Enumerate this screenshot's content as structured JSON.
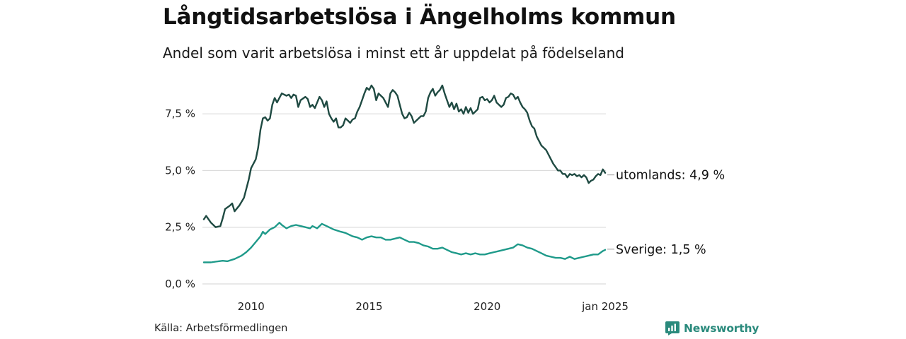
{
  "header": {
    "title": "Långtidsarbetslösa i Ängelholms kommun",
    "subtitle": "Andel som varit arbetslösa i minst ett år uppdelat på födelseland"
  },
  "footer": {
    "source": "Källa: Arbetsförmedlingen",
    "brand": "Newsworthy",
    "brand_color": "#2a8a7c"
  },
  "chart_data": {
    "type": "line",
    "x_unit": "year",
    "xlim": [
      2008.0,
      2025.0
    ],
    "ylim": [
      0,
      9
    ],
    "y_ticks": [
      {
        "value": 0,
        "label": "0,0 %"
      },
      {
        "value": 2.5,
        "label": "2,5 %"
      },
      {
        "value": 5,
        "label": "5,0 %"
      },
      {
        "value": 7.5,
        "label": "7,5 %"
      }
    ],
    "x_ticks": [
      {
        "value": 2010,
        "label": "2010"
      },
      {
        "value": 2015,
        "label": "2015"
      },
      {
        "value": 2020,
        "label": "2020"
      },
      {
        "value": 2025,
        "label": "jan 2025"
      }
    ],
    "grid": "horizontal",
    "series": [
      {
        "name": "utomlands",
        "end_label": "utomlands: 4,9 %",
        "color": "#1f4a42",
        "points": [
          [
            2008.0,
            2.85
          ],
          [
            2008.1,
            3.0
          ],
          [
            2008.3,
            2.7
          ],
          [
            2008.5,
            2.5
          ],
          [
            2008.7,
            2.55
          ],
          [
            2008.8,
            2.9
          ],
          [
            2008.9,
            3.3
          ],
          [
            2009.1,
            3.45
          ],
          [
            2009.2,
            3.55
          ],
          [
            2009.3,
            3.2
          ],
          [
            2009.5,
            3.45
          ],
          [
            2009.7,
            3.8
          ],
          [
            2009.9,
            4.6
          ],
          [
            2010.0,
            5.1
          ],
          [
            2010.2,
            5.5
          ],
          [
            2010.3,
            6.0
          ],
          [
            2010.4,
            6.8
          ],
          [
            2010.5,
            7.3
          ],
          [
            2010.6,
            7.35
          ],
          [
            2010.7,
            7.2
          ],
          [
            2010.8,
            7.3
          ],
          [
            2010.9,
            7.9
          ],
          [
            2011.0,
            8.2
          ],
          [
            2011.1,
            8.0
          ],
          [
            2011.2,
            8.2
          ],
          [
            2011.3,
            8.4
          ],
          [
            2011.5,
            8.3
          ],
          [
            2011.6,
            8.35
          ],
          [
            2011.7,
            8.2
          ],
          [
            2011.8,
            8.35
          ],
          [
            2011.9,
            8.3
          ],
          [
            2012.0,
            7.8
          ],
          [
            2012.1,
            8.1
          ],
          [
            2012.3,
            8.25
          ],
          [
            2012.4,
            8.15
          ],
          [
            2012.5,
            7.8
          ],
          [
            2012.6,
            7.9
          ],
          [
            2012.7,
            7.75
          ],
          [
            2012.8,
            8.0
          ],
          [
            2012.9,
            8.25
          ],
          [
            2013.0,
            8.1
          ],
          [
            2013.1,
            7.8
          ],
          [
            2013.2,
            8.05
          ],
          [
            2013.3,
            7.5
          ],
          [
            2013.4,
            7.3
          ],
          [
            2013.5,
            7.15
          ],
          [
            2013.6,
            7.3
          ],
          [
            2013.7,
            6.9
          ],
          [
            2013.8,
            6.9
          ],
          [
            2013.9,
            7.0
          ],
          [
            2014.0,
            7.3
          ],
          [
            2014.1,
            7.2
          ],
          [
            2014.2,
            7.1
          ],
          [
            2014.3,
            7.25
          ],
          [
            2014.4,
            7.3
          ],
          [
            2014.5,
            7.6
          ],
          [
            2014.6,
            7.8
          ],
          [
            2014.7,
            8.1
          ],
          [
            2014.8,
            8.4
          ],
          [
            2014.9,
            8.65
          ],
          [
            2015.0,
            8.55
          ],
          [
            2015.1,
            8.75
          ],
          [
            2015.2,
            8.6
          ],
          [
            2015.3,
            8.1
          ],
          [
            2015.4,
            8.4
          ],
          [
            2015.5,
            8.3
          ],
          [
            2015.6,
            8.2
          ],
          [
            2015.7,
            8.0
          ],
          [
            2015.8,
            7.8
          ],
          [
            2015.9,
            8.4
          ],
          [
            2016.0,
            8.55
          ],
          [
            2016.1,
            8.45
          ],
          [
            2016.2,
            8.3
          ],
          [
            2016.3,
            7.9
          ],
          [
            2016.4,
            7.5
          ],
          [
            2016.5,
            7.3
          ],
          [
            2016.6,
            7.35
          ],
          [
            2016.7,
            7.55
          ],
          [
            2016.8,
            7.4
          ],
          [
            2016.9,
            7.1
          ],
          [
            2017.0,
            7.2
          ],
          [
            2017.1,
            7.3
          ],
          [
            2017.2,
            7.4
          ],
          [
            2017.3,
            7.4
          ],
          [
            2017.4,
            7.6
          ],
          [
            2017.5,
            8.2
          ],
          [
            2017.6,
            8.45
          ],
          [
            2017.7,
            8.6
          ],
          [
            2017.8,
            8.3
          ],
          [
            2017.9,
            8.45
          ],
          [
            2018.0,
            8.55
          ],
          [
            2018.1,
            8.75
          ],
          [
            2018.2,
            8.4
          ],
          [
            2018.3,
            8.1
          ],
          [
            2018.4,
            7.8
          ],
          [
            2018.5,
            8.0
          ],
          [
            2018.6,
            7.7
          ],
          [
            2018.7,
            7.95
          ],
          [
            2018.8,
            7.6
          ],
          [
            2018.9,
            7.7
          ],
          [
            2019.0,
            7.5
          ],
          [
            2019.1,
            7.8
          ],
          [
            2019.2,
            7.55
          ],
          [
            2019.3,
            7.75
          ],
          [
            2019.4,
            7.5
          ],
          [
            2019.5,
            7.6
          ],
          [
            2019.6,
            7.7
          ],
          [
            2019.7,
            8.2
          ],
          [
            2019.8,
            8.25
          ],
          [
            2019.9,
            8.1
          ],
          [
            2020.0,
            8.15
          ],
          [
            2020.1,
            8.0
          ],
          [
            2020.2,
            8.1
          ],
          [
            2020.3,
            8.3
          ],
          [
            2020.4,
            8.0
          ],
          [
            2020.5,
            7.9
          ],
          [
            2020.6,
            7.8
          ],
          [
            2020.7,
            7.9
          ],
          [
            2020.8,
            8.2
          ],
          [
            2020.9,
            8.25
          ],
          [
            2021.0,
            8.4
          ],
          [
            2021.1,
            8.35
          ],
          [
            2021.2,
            8.15
          ],
          [
            2021.3,
            8.25
          ],
          [
            2021.4,
            8.0
          ],
          [
            2021.5,
            7.8
          ],
          [
            2021.6,
            7.7
          ],
          [
            2021.7,
            7.55
          ],
          [
            2021.8,
            7.2
          ],
          [
            2021.9,
            6.95
          ],
          [
            2022.0,
            6.85
          ],
          [
            2022.1,
            6.5
          ],
          [
            2022.2,
            6.3
          ],
          [
            2022.3,
            6.1
          ],
          [
            2022.4,
            6.0
          ],
          [
            2022.5,
            5.9
          ],
          [
            2022.6,
            5.7
          ],
          [
            2022.7,
            5.5
          ],
          [
            2022.8,
            5.3
          ],
          [
            2022.9,
            5.15
          ],
          [
            2023.0,
            5.0
          ],
          [
            2023.1,
            5.0
          ],
          [
            2023.2,
            4.85
          ],
          [
            2023.3,
            4.85
          ],
          [
            2023.4,
            4.7
          ],
          [
            2023.5,
            4.85
          ],
          [
            2023.6,
            4.8
          ],
          [
            2023.7,
            4.85
          ],
          [
            2023.8,
            4.75
          ],
          [
            2023.9,
            4.8
          ],
          [
            2024.0,
            4.7
          ],
          [
            2024.1,
            4.8
          ],
          [
            2024.2,
            4.7
          ],
          [
            2024.3,
            4.45
          ],
          [
            2024.4,
            4.55
          ],
          [
            2024.5,
            4.6
          ],
          [
            2024.6,
            4.75
          ],
          [
            2024.7,
            4.85
          ],
          [
            2024.8,
            4.8
          ],
          [
            2024.9,
            5.05
          ],
          [
            2025.0,
            4.9
          ]
        ]
      },
      {
        "name": "Sverige",
        "end_label": "Sverige: 1,5 %",
        "color": "#1f9a8a",
        "points": [
          [
            2008.0,
            0.95
          ],
          [
            2008.3,
            0.95
          ],
          [
            2008.5,
            0.98
          ],
          [
            2008.8,
            1.02
          ],
          [
            2009.0,
            1.0
          ],
          [
            2009.3,
            1.1
          ],
          [
            2009.6,
            1.25
          ],
          [
            2009.8,
            1.4
          ],
          [
            2010.0,
            1.6
          ],
          [
            2010.2,
            1.85
          ],
          [
            2010.4,
            2.1
          ],
          [
            2010.5,
            2.3
          ],
          [
            2010.6,
            2.2
          ],
          [
            2010.8,
            2.4
          ],
          [
            2011.0,
            2.5
          ],
          [
            2011.2,
            2.7
          ],
          [
            2011.3,
            2.6
          ],
          [
            2011.5,
            2.45
          ],
          [
            2011.7,
            2.55
          ],
          [
            2011.9,
            2.6
          ],
          [
            2012.1,
            2.55
          ],
          [
            2012.3,
            2.5
          ],
          [
            2012.5,
            2.45
          ],
          [
            2012.6,
            2.55
          ],
          [
            2012.8,
            2.45
          ],
          [
            2013.0,
            2.65
          ],
          [
            2013.2,
            2.55
          ],
          [
            2013.5,
            2.4
          ],
          [
            2013.8,
            2.3
          ],
          [
            2014.0,
            2.25
          ],
          [
            2014.3,
            2.1
          ],
          [
            2014.5,
            2.05
          ],
          [
            2014.7,
            1.95
          ],
          [
            2014.9,
            2.05
          ],
          [
            2015.1,
            2.1
          ],
          [
            2015.3,
            2.05
          ],
          [
            2015.5,
            2.05
          ],
          [
            2015.7,
            1.95
          ],
          [
            2015.9,
            1.95
          ],
          [
            2016.1,
            2.0
          ],
          [
            2016.3,
            2.05
          ],
          [
            2016.5,
            1.95
          ],
          [
            2016.7,
            1.85
          ],
          [
            2016.9,
            1.85
          ],
          [
            2017.1,
            1.8
          ],
          [
            2017.3,
            1.7
          ],
          [
            2017.5,
            1.65
          ],
          [
            2017.7,
            1.55
          ],
          [
            2017.9,
            1.55
          ],
          [
            2018.1,
            1.6
          ],
          [
            2018.3,
            1.5
          ],
          [
            2018.5,
            1.4
          ],
          [
            2018.7,
            1.35
          ],
          [
            2018.9,
            1.3
          ],
          [
            2019.1,
            1.35
          ],
          [
            2019.3,
            1.3
          ],
          [
            2019.5,
            1.35
          ],
          [
            2019.7,
            1.3
          ],
          [
            2019.9,
            1.3
          ],
          [
            2020.1,
            1.35
          ],
          [
            2020.3,
            1.4
          ],
          [
            2020.5,
            1.45
          ],
          [
            2020.7,
            1.5
          ],
          [
            2020.9,
            1.55
          ],
          [
            2021.1,
            1.6
          ],
          [
            2021.3,
            1.75
          ],
          [
            2021.5,
            1.7
          ],
          [
            2021.7,
            1.6
          ],
          [
            2021.9,
            1.55
          ],
          [
            2022.1,
            1.45
          ],
          [
            2022.3,
            1.35
          ],
          [
            2022.5,
            1.25
          ],
          [
            2022.7,
            1.2
          ],
          [
            2022.9,
            1.15
          ],
          [
            2023.1,
            1.15
          ],
          [
            2023.3,
            1.1
          ],
          [
            2023.5,
            1.2
          ],
          [
            2023.7,
            1.1
          ],
          [
            2023.9,
            1.15
          ],
          [
            2024.1,
            1.2
          ],
          [
            2024.3,
            1.25
          ],
          [
            2024.5,
            1.3
          ],
          [
            2024.7,
            1.3
          ],
          [
            2024.9,
            1.45
          ],
          [
            2025.0,
            1.5
          ]
        ]
      }
    ]
  }
}
